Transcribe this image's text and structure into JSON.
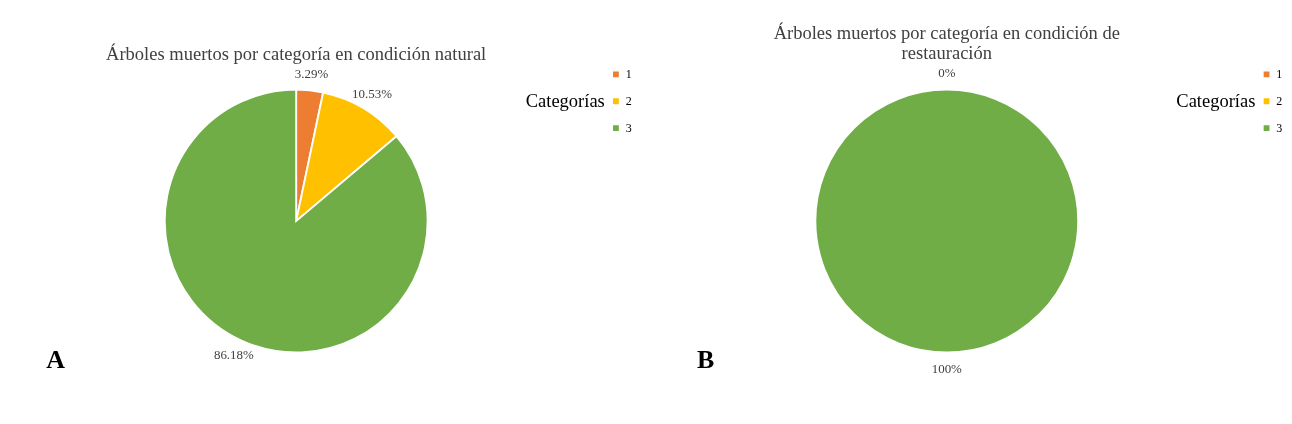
{
  "chart_data": [
    {
      "type": "pie",
      "title": "Árboles muertos por categoría en condición natural",
      "legend_title": "Categorías",
      "legend": "right",
      "categories": [
        "1",
        "2",
        "3"
      ],
      "values": [
        3.29,
        10.53,
        86.18
      ],
      "colors": [
        "#ed7d31",
        "#ffc000",
        "#70ad47"
      ],
      "value_labels": [
        "3.29%",
        "10.53%",
        "86.18%"
      ],
      "annotations": [
        "A"
      ]
    },
    {
      "type": "pie",
      "title": "Árboles muertos por categoría en condición de restauración",
      "legend_title": "Categorías",
      "legend": "right",
      "categories": [
        "1",
        "2",
        "3"
      ],
      "values": [
        0,
        0,
        100
      ],
      "colors": [
        "#ed7d31",
        "#ffc000",
        "#70ad47"
      ],
      "value_labels": [
        "0%",
        null,
        "100%"
      ],
      "annotations": [
        "B"
      ]
    }
  ]
}
